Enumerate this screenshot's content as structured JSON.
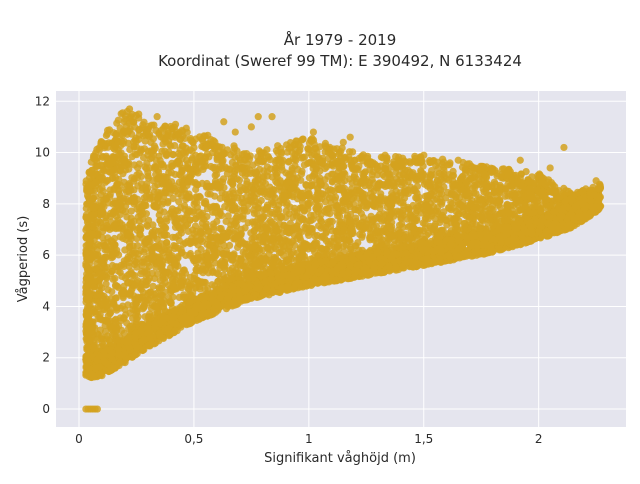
{
  "chart_data": {
    "type": "scatter",
    "title": [
      "År 1979 - 2019",
      "Koordinat (Sweref 99 TM): E 390492, N 6133424"
    ],
    "xlabel": "Signifikant våghöjd (m)",
    "ylabel": "Vågperiod (s)",
    "xlim": [
      -0.1,
      2.38
    ],
    "ylim": [
      -0.7,
      12.4
    ],
    "xticks": [
      0,
      0.5,
      1,
      1.5,
      2
    ],
    "xtick_labels": [
      "0",
      "0,5",
      "1",
      "1,5",
      "2"
    ],
    "yticks": [
      0,
      2,
      4,
      6,
      8,
      10,
      12
    ],
    "ytick_labels": [
      "0",
      "2",
      "4",
      "6",
      "8",
      "10",
      "12"
    ],
    "grid": true,
    "marker_color": "#D4A21F",
    "background_color": "#E5E5EE",
    "point_cloud_note_free": true,
    "envelope": {
      "x": [
        0.03,
        0.06,
        0.1,
        0.2,
        0.3,
        0.5,
        0.75,
        1.0,
        1.25,
        1.5,
        1.75,
        2.0,
        2.15,
        2.27
      ],
      "lower": [
        1.3,
        1.2,
        1.3,
        1.8,
        2.4,
        3.4,
        4.3,
        4.8,
        5.2,
        5.6,
        6.0,
        6.6,
        7.1,
        7.8
      ],
      "upper": [
        9.0,
        9.8,
        10.8,
        11.7,
        11.2,
        10.9,
        10.0,
        10.6,
        9.9,
        9.9,
        9.5,
        9.2,
        8.4,
        8.8
      ]
    },
    "zero_period_points": {
      "x": [
        0.03,
        0.04,
        0.05,
        0.06,
        0.07,
        0.08
      ],
      "y": [
        0,
        0,
        0,
        0,
        0,
        0
      ]
    },
    "notable_points": {
      "x": [
        0.19,
        0.2,
        0.21,
        0.22,
        0.26,
        0.34,
        0.42,
        0.63,
        0.68,
        0.75,
        0.78,
        0.84,
        1.02,
        1.15,
        1.18,
        1.28,
        1.34,
        1.47,
        1.65,
        1.72,
        1.81,
        1.92,
        2.05,
        2.11,
        2.25
      ],
      "y": [
        11.55,
        11.3,
        11.6,
        11.7,
        11.5,
        11.4,
        11.1,
        11.2,
        10.8,
        11.0,
        11.4,
        11.4,
        10.8,
        10.4,
        10.6,
        9.6,
        9.8,
        9.6,
        9.7,
        9.4,
        9.3,
        9.7,
        9.4,
        10.2,
        8.9
      ]
    }
  }
}
